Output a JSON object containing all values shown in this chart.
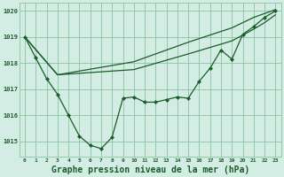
{
  "background_color": "#d4ede4",
  "grid_color": "#88c4a0",
  "line_color": "#1a5c28",
  "marker_color": "#1a5c28",
  "title": "Graphe pression niveau de la mer (hPa)",
  "title_fontsize": 7.0,
  "xlim": [
    -0.5,
    23.5
  ],
  "ylim": [
    1014.4,
    1020.3
  ],
  "yticks": [
    1015,
    1016,
    1017,
    1018,
    1019,
    1020
  ],
  "xticks": [
    0,
    1,
    2,
    3,
    4,
    5,
    6,
    7,
    8,
    9,
    10,
    11,
    12,
    13,
    14,
    15,
    16,
    17,
    18,
    19,
    20,
    21,
    22,
    23
  ],
  "series1_x": [
    0,
    1,
    2,
    3,
    4,
    5,
    6,
    7,
    8,
    9,
    10,
    11,
    12,
    13,
    14,
    15,
    16,
    17,
    18,
    19,
    20,
    21,
    22,
    23
  ],
  "series1_y": [
    1019.0,
    1018.2,
    1017.4,
    1016.8,
    1016.0,
    1015.2,
    1014.85,
    1014.72,
    1015.15,
    1016.65,
    1016.7,
    1016.5,
    1016.5,
    1016.6,
    1016.7,
    1016.65,
    1017.3,
    1017.8,
    1018.5,
    1018.15,
    1019.1,
    1019.4,
    1019.75,
    1020.0
  ],
  "series2_x": [
    0,
    3,
    10,
    15,
    19,
    21,
    22,
    23
  ],
  "series2_y": [
    1019.0,
    1017.55,
    1018.05,
    1018.8,
    1019.35,
    1019.75,
    1019.9,
    1020.05
  ],
  "series3_x": [
    0,
    3,
    10,
    15,
    19,
    21,
    22,
    23
  ],
  "series3_y": [
    1019.0,
    1017.55,
    1017.75,
    1018.35,
    1018.85,
    1019.3,
    1019.55,
    1019.85
  ]
}
